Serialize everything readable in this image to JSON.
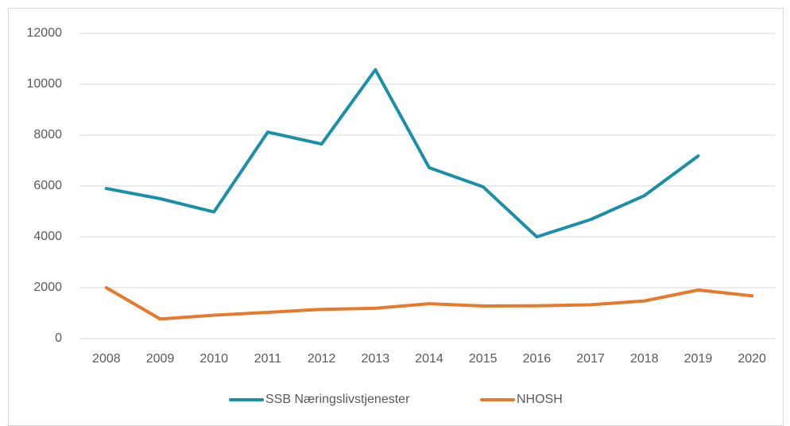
{
  "chart_data": {
    "type": "line",
    "categories": [
      "2008",
      "2009",
      "2010",
      "2011",
      "2012",
      "2013",
      "2014",
      "2015",
      "2016",
      "2017",
      "2018",
      "2019",
      "2020"
    ],
    "series": [
      {
        "name": "SSB Næringslivstjenester",
        "color": "#1a8fa8",
        "values": [
          5900,
          5500,
          4980,
          8120,
          7650,
          10570,
          6720,
          5970,
          4000,
          4680,
          5620,
          7180,
          null
        ]
      },
      {
        "name": "NHOSH",
        "color": "#e8782a",
        "values": [
          2000,
          770,
          920,
          1030,
          1150,
          1190,
          1370,
          1280,
          1290,
          1330,
          1480,
          1910,
          1680
        ]
      }
    ],
    "ylim": [
      0,
      12000
    ],
    "yticks": [
      0,
      2000,
      4000,
      6000,
      8000,
      10000,
      12000
    ],
    "grid": true,
    "legend": "bottom"
  }
}
